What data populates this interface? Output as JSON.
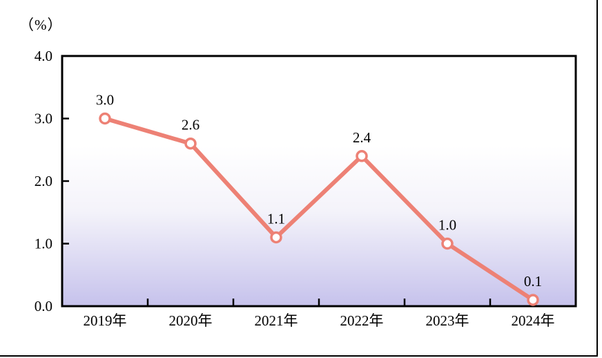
{
  "figure": {
    "unit_label": "（%）",
    "colors": {
      "line": "#ed8175",
      "marker_fill": "#ffffff",
      "axis": "#000000",
      "text": "#000000",
      "plot_bg_top": "#ffffff",
      "plot_bg_mid": "#f4f3fa",
      "plot_bg_bottom": "#c6c2ec"
    }
  },
  "chart_data": {
    "type": "line",
    "categories": [
      "2019年",
      "2020年",
      "2021年",
      "2022年",
      "2023年",
      "2024年"
    ],
    "values": [
      3.0,
      2.6,
      1.1,
      2.4,
      1.0,
      0.1
    ],
    "point_labels": [
      "3.0",
      "2.6",
      "1.1",
      "2.4",
      "1.0",
      "0.1"
    ],
    "title": "",
    "xlabel": "",
    "ylabel": "（%）",
    "ylim": [
      0.0,
      4.0
    ],
    "ytick_interval": 1.0,
    "ytick_labels": [
      "0.0",
      "1.0",
      "2.0",
      "3.0",
      "4.0"
    ],
    "grid": false,
    "legend": "none",
    "marker_style": "open-circle"
  }
}
